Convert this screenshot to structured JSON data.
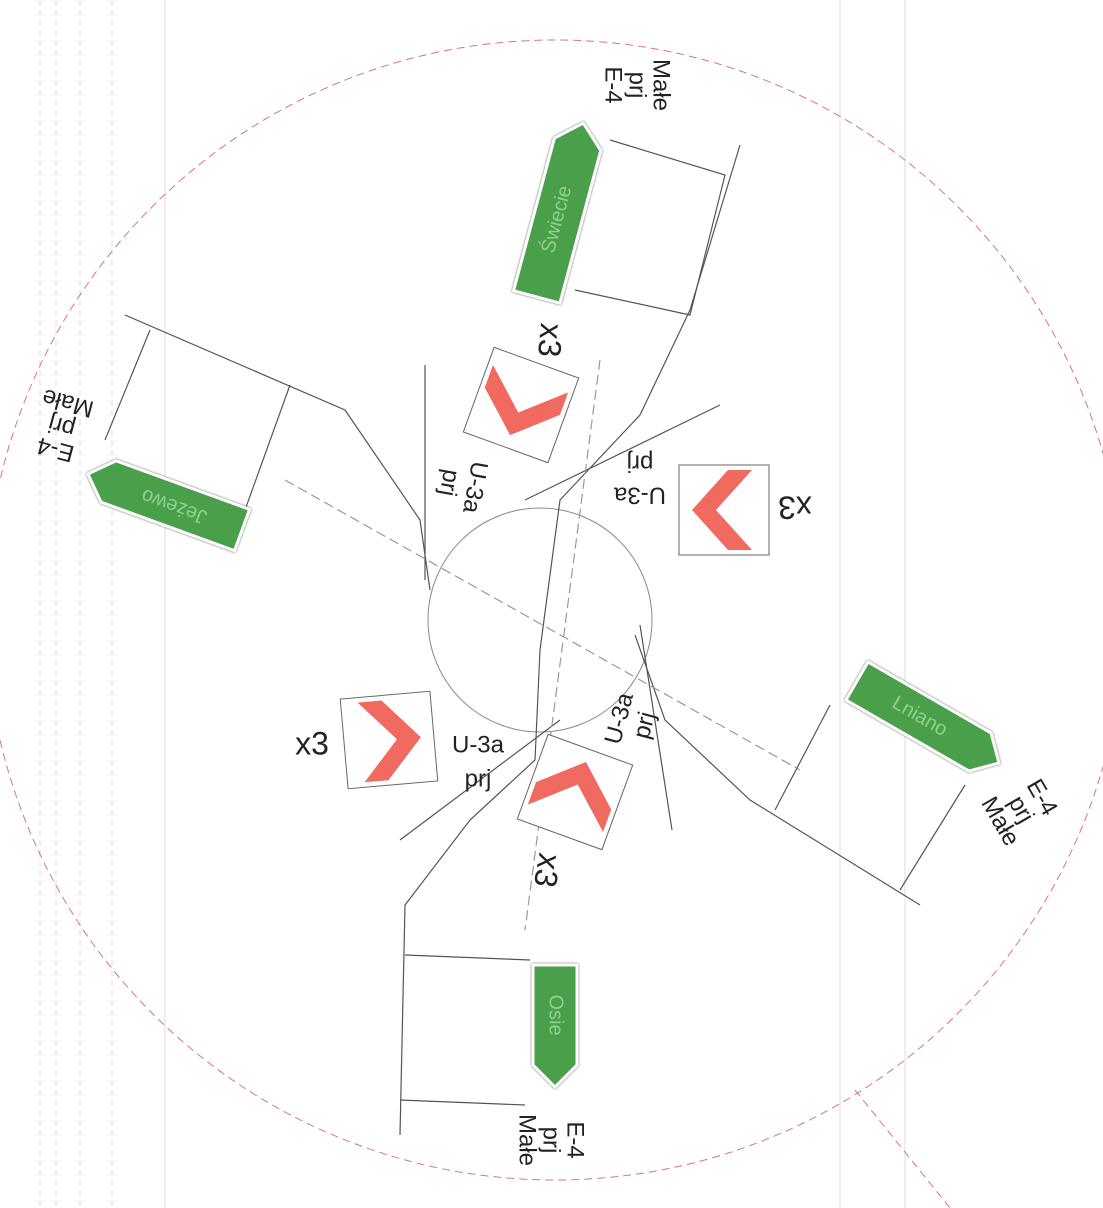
{
  "direction_signs": [
    {
      "code": "E-4",
      "note": "prj",
      "size": "Małe",
      "destination": "Świecie"
    },
    {
      "code": "E-4",
      "note": "prj",
      "size": "Małe",
      "destination": "Jeżewo"
    },
    {
      "code": "E-4",
      "note": "prj",
      "size": "Małe",
      "destination": "Lniano"
    },
    {
      "code": "E-4",
      "note": "prj",
      "size": "Małe",
      "destination": "Osie"
    }
  ],
  "chevron_signs": [
    {
      "code": "U-3a",
      "note": "prj",
      "count": "x3"
    },
    {
      "code": "U-3a",
      "note": "prj",
      "count": "x3"
    },
    {
      "code": "U-3a",
      "note": "prj",
      "count": "x3"
    },
    {
      "code": "U-3a",
      "note": "prj",
      "count": "x3"
    }
  ]
}
